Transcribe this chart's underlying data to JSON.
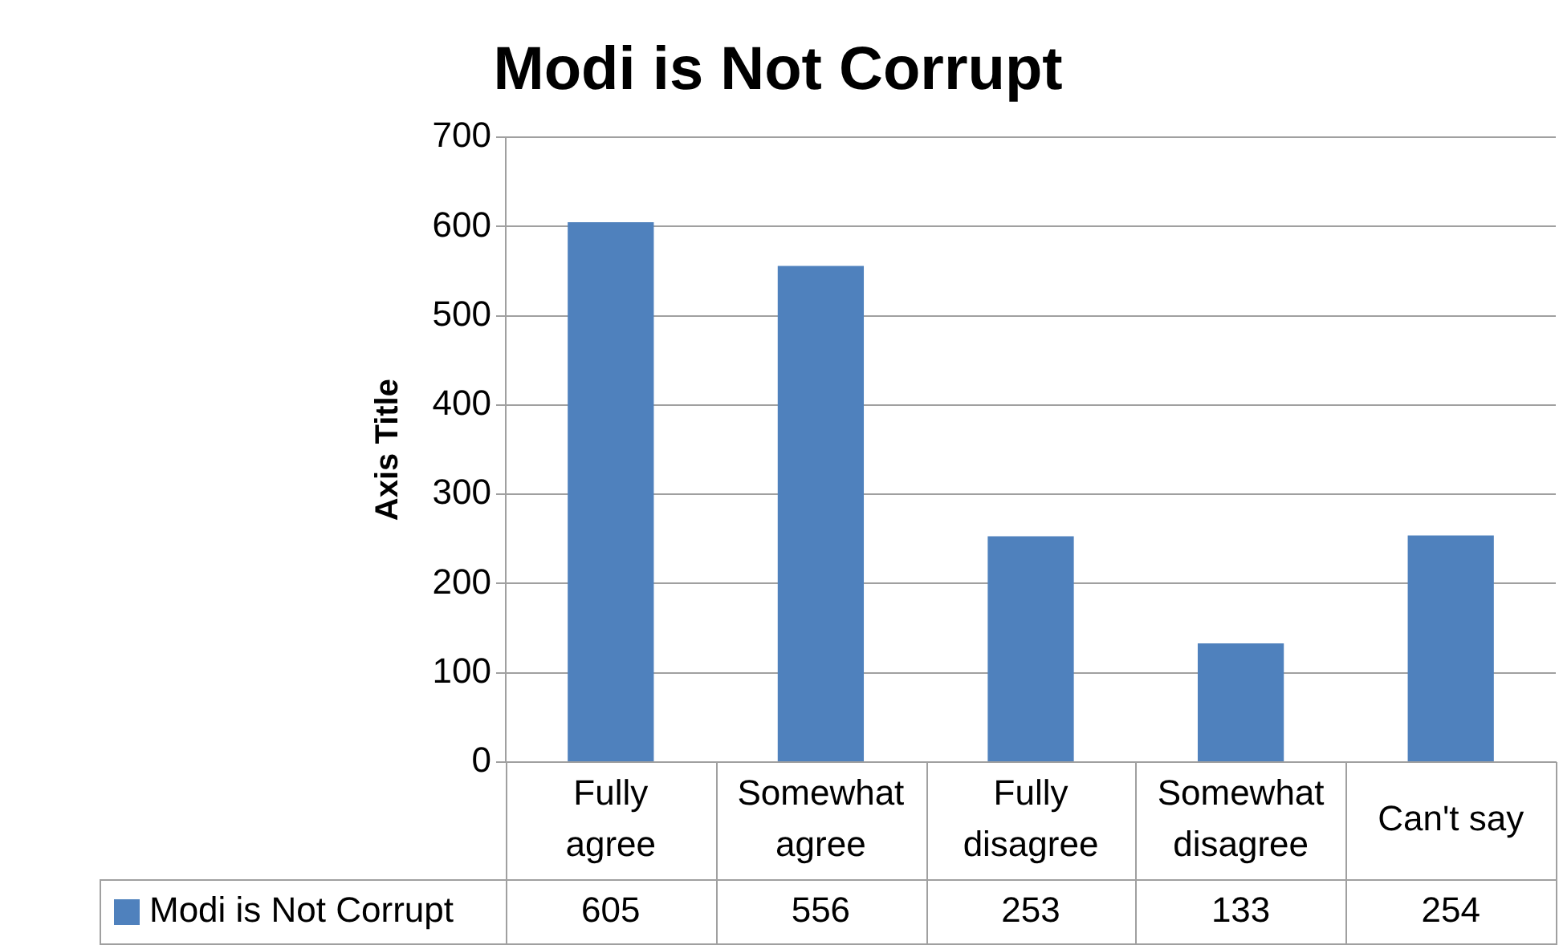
{
  "chart_data": {
    "type": "bar",
    "title": "Modi is Not Corrupt",
    "ylabel": "Axis Title",
    "categories": [
      "Fully agree",
      "Somewhat agree",
      "Fully disagree",
      "Somewhat disagree",
      "Can't say"
    ],
    "series": [
      {
        "name": "Modi is Not Corrupt",
        "color": "#4f81bd",
        "values": [
          605,
          556,
          253,
          133,
          254
        ]
      }
    ],
    "ylim": [
      0,
      700
    ],
    "yticks": [
      0,
      100,
      200,
      300,
      400,
      500,
      600,
      700
    ],
    "grid": "y",
    "legend": "bottom",
    "data_labels": true
  }
}
